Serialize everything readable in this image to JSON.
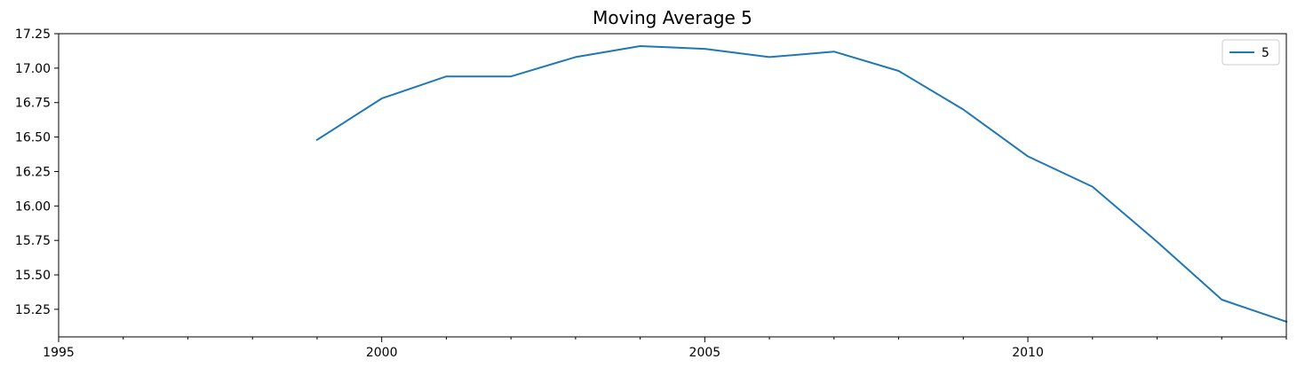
{
  "chart_data": {
    "type": "line",
    "title": "Moving Average 5",
    "xlabel": "",
    "ylabel": "",
    "x_ticks": [
      "1995",
      "2000",
      "2005",
      "2010"
    ],
    "y_ticks": [
      "15.25",
      "15.50",
      "15.75",
      "16.00",
      "16.25",
      "16.50",
      "16.75",
      "17.00",
      "17.25"
    ],
    "xlim": [
      1995,
      2014
    ],
    "ylim": [
      15.05,
      17.25
    ],
    "grid": false,
    "legend_position": "top-right",
    "series": [
      {
        "name": "5",
        "color": "#1f77b4",
        "x": [
          1999,
          2000,
          2001,
          2002,
          2003,
          2004,
          2005,
          2006,
          2007,
          2008,
          2009,
          2010,
          2011,
          2012,
          2013,
          2014
        ],
        "y": [
          16.48,
          16.78,
          16.94,
          16.94,
          17.08,
          17.16,
          17.14,
          17.08,
          17.12,
          16.98,
          16.7,
          16.36,
          16.14,
          15.74,
          15.32,
          15.16
        ]
      }
    ]
  }
}
